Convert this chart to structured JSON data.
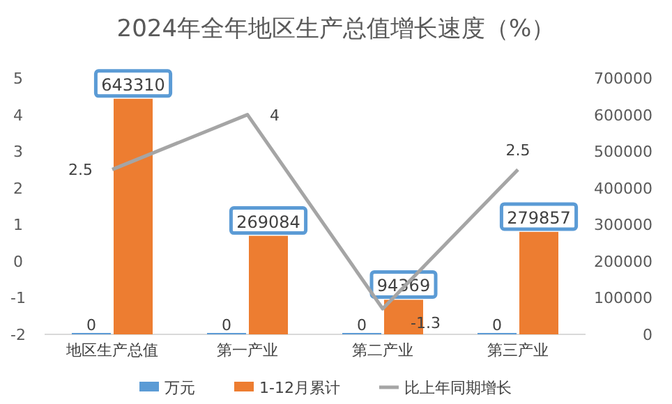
{
  "chart_data": {
    "type": "bar",
    "title": "2024年全年地区生产总值增长速度（%）",
    "categories": [
      "地区生产总值",
      "第一产业",
      "第二产业",
      "第三产业"
    ],
    "series": [
      {
        "name": "万元",
        "axis": "y2",
        "color": "#5b9bd5",
        "values": [
          0,
          0,
          0,
          0
        ]
      },
      {
        "name": "1-12月累计",
        "axis": "y2",
        "color": "#ed7d31",
        "values": [
          643310,
          269084,
          94369,
          279857
        ]
      },
      {
        "name": "比上年同期增长",
        "type": "line",
        "axis": "y",
        "color": "#a5a5a5",
        "marker": "none",
        "values": [
          2.5,
          4,
          -1.3,
          2.5
        ]
      }
    ],
    "ylim": [
      -2,
      5
    ],
    "yticks": [
      -2,
      -1,
      0,
      1,
      2,
      3,
      4,
      5
    ],
    "y2lim": [
      0,
      700000
    ],
    "y2ticks": [
      0,
      100000,
      200000,
      300000,
      400000,
      500000,
      600000,
      700000
    ],
    "data_labels": true,
    "grid": false,
    "legend": "bottom"
  }
}
